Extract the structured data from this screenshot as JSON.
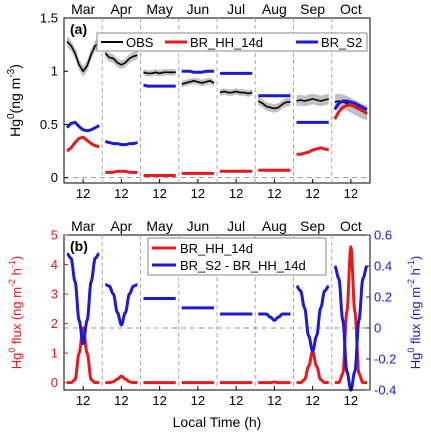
{
  "chart_data": [
    {
      "type": "line",
      "panel_label": "(a)",
      "ylabel_base": "Hg",
      "ylabel_sup": "0",
      "ylabel_unit": "(ng m",
      "ylabel_unit_sup": "-3",
      "ylabel_close": ")",
      "months": [
        "Mar",
        "Apr",
        "May",
        "Jun",
        "Jul",
        "Aug",
        "Sep",
        "Oct"
      ],
      "hour_tick_label": "12",
      "hours": [
        0,
        3,
        6,
        9,
        12,
        15,
        18,
        21,
        24
      ],
      "yticks": [
        "0",
        "0.5",
        "1",
        "1.5"
      ],
      "ylim": [
        -0.05,
        1.5
      ],
      "legend": [
        "OBS",
        "BR_HH_14d",
        "BR_S2"
      ],
      "colors": {
        "OBS": "#000000",
        "BR_HH_14d": "#e8191c",
        "BR_S2": "#1b1bd6",
        "band": "#b5b5b5",
        "zero": "#9a9a9a"
      },
      "series": [
        {
          "name": "OBS",
          "values": [
            [
              1.28,
              1.24,
              1.17,
              1.06,
              1.0,
              1.05,
              1.16,
              1.24,
              1.26
            ],
            [
              1.17,
              1.13,
              1.12,
              1.08,
              1.06,
              1.08,
              1.12,
              1.14,
              1.15
            ],
            [
              0.99,
              0.98,
              0.98,
              0.99,
              0.98,
              0.99,
              0.99,
              0.99,
              0.99
            ],
            [
              0.88,
              0.89,
              0.9,
              0.91,
              0.9,
              0.89,
              0.9,
              0.91,
              0.89
            ],
            [
              0.8,
              0.81,
              0.8,
              0.8,
              0.81,
              0.8,
              0.8,
              0.79,
              0.8
            ],
            [
              0.72,
              0.7,
              0.67,
              0.66,
              0.65,
              0.66,
              0.69,
              0.71,
              0.71
            ],
            [
              0.72,
              0.73,
              0.72,
              0.73,
              0.74,
              0.73,
              0.72,
              0.73,
              0.74
            ],
            [
              0.71,
              0.72,
              0.71,
              0.7,
              0.68,
              0.66,
              0.64,
              0.62,
              0.61
            ]
          ]
        },
        {
          "name": "BR_HH_14d",
          "values": [
            [
              0.25,
              0.28,
              0.33,
              0.37,
              0.38,
              0.35,
              0.32,
              0.3,
              0.29
            ],
            [
              0.05,
              0.05,
              0.05,
              0.06,
              0.06,
              0.06,
              0.05,
              0.05,
              0.05
            ],
            [
              0.02,
              0.02,
              0.02,
              0.02,
              0.02,
              0.02,
              0.02,
              0.02,
              0.02
            ],
            [
              0.04,
              0.04,
              0.04,
              0.04,
              0.04,
              0.04,
              0.04,
              0.04,
              0.04
            ],
            [
              0.06,
              0.06,
              0.06,
              0.06,
              0.06,
              0.06,
              0.06,
              0.06,
              0.06
            ],
            [
              0.07,
              0.07,
              0.07,
              0.07,
              0.07,
              0.07,
              0.07,
              0.07,
              0.07
            ],
            [
              0.22,
              0.22,
              0.23,
              0.24,
              0.26,
              0.27,
              0.28,
              0.27,
              0.26
            ],
            [
              0.55,
              0.62,
              0.66,
              0.68,
              0.68,
              0.67,
              0.65,
              0.63,
              0.6
            ]
          ]
        },
        {
          "name": "BR_S2",
          "values": [
            [
              0.47,
              0.51,
              0.52,
              0.48,
              0.45,
              0.44,
              0.45,
              0.47,
              0.49
            ],
            [
              0.34,
              0.33,
              0.32,
              0.32,
              0.31,
              0.31,
              0.32,
              0.32,
              0.33
            ],
            [
              0.87,
              0.86,
              0.86,
              0.86,
              0.86,
              0.86,
              0.86,
              0.86,
              0.86
            ],
            [
              1.0,
              1.0,
              1.0,
              0.99,
              0.99,
              0.99,
              1.0,
              1.0,
              1.0
            ],
            [
              0.98,
              0.98,
              0.98,
              0.98,
              0.98,
              0.98,
              0.98,
              0.98,
              0.98
            ],
            [
              0.77,
              0.77,
              0.77,
              0.77,
              0.77,
              0.77,
              0.77,
              0.77,
              0.77
            ],
            [
              0.52,
              0.52,
              0.52,
              0.52,
              0.52,
              0.52,
              0.52,
              0.52,
              0.52
            ],
            [
              0.64,
              0.7,
              0.72,
              0.72,
              0.71,
              0.7,
              0.68,
              0.66,
              0.64
            ]
          ]
        }
      ],
      "obs_band": [
        0.05,
        0.04,
        0.03,
        0.03,
        0.03,
        0.04,
        0.05,
        0.07
      ]
    },
    {
      "type": "line",
      "panel_label": "(b)",
      "ylabel_left": "Hg",
      "ylabel_left_sup": "0",
      "ylabel_left_unit": " flux (ng m",
      "ylabel_left_unit_sup": "-2",
      "ylabel_left_unit2": " h",
      "ylabel_left_unit2_sup": "-1",
      "ylabel_left_close": ")",
      "ylabel_right": "Hg",
      "ylabel_right_sup": "0",
      "ylabel_right_unit": " flux (ng m",
      "ylabel_right_unit_sup": "-2",
      "ylabel_right_unit2": " h",
      "ylabel_right_unit2_sup": "-1",
      "ylabel_right_close": ")",
      "xlabel": "Local Time (h)",
      "months": [
        "Mar",
        "Apr",
        "May",
        "Jun",
        "Jul",
        "Aug",
        "Sep",
        "Oct"
      ],
      "hour_tick_label": "12",
      "hours": [
        0,
        3,
        6,
        9,
        12,
        15,
        18,
        21,
        24
      ],
      "yticks_left": [
        "0",
        "1",
        "2",
        "3",
        "4",
        "5"
      ],
      "ylim_left": [
        -0.25,
        5.0
      ],
      "yticks_right": [
        "-0.4",
        "-0.2",
        "0",
        "0.2",
        "0.4",
        "0.6"
      ],
      "ylim_right": [
        -0.4,
        0.6
      ],
      "legend": [
        "BR_HH_14d",
        "BR_S2 - BR_HH_14d"
      ],
      "colors": {
        "BR_HH_14d": "#e8191c",
        "BR_S2 - BR_HH_14d": "#1b1bd6",
        "zero": "#9a9a9a"
      },
      "series": [
        {
          "name": "BR_HH_14d",
          "axis": "left",
          "values": [
            [
              0.0,
              0.0,
              0.1,
              1.0,
              1.85,
              1.0,
              0.1,
              0.0,
              0.0
            ],
            [
              0.0,
              0.0,
              0.03,
              0.12,
              0.22,
              0.12,
              0.03,
              0.0,
              0.0
            ],
            [
              0.0,
              0.0,
              0.0,
              0.0,
              0.0,
              0.0,
              0.0,
              0.0,
              0.0
            ],
            [
              0.0,
              0.0,
              0.0,
              0.0,
              0.0,
              0.0,
              0.0,
              0.0,
              0.0
            ],
            [
              0.0,
              0.0,
              0.0,
              0.0,
              0.0,
              0.0,
              0.0,
              0.0,
              0.0
            ],
            [
              0.0,
              0.0,
              0.0,
              0.0,
              0.02,
              0.0,
              0.0,
              0.0,
              0.0
            ],
            [
              0.0,
              0.0,
              0.1,
              0.55,
              1.05,
              0.55,
              0.1,
              0.0,
              0.0
            ],
            [
              0.0,
              0.0,
              0.3,
              2.4,
              4.6,
              2.4,
              0.3,
              0.0,
              0.0
            ]
          ]
        },
        {
          "name": "BR_S2 - BR_HH_14d",
          "axis": "right",
          "values": [
            [
              0.48,
              0.45,
              0.3,
              0.05,
              -0.1,
              0.05,
              0.3,
              0.45,
              0.48
            ],
            [
              0.28,
              0.27,
              0.22,
              0.1,
              0.02,
              0.1,
              0.22,
              0.27,
              0.28
            ],
            [
              0.19,
              0.19,
              0.19,
              0.19,
              0.19,
              0.19,
              0.19,
              0.19,
              0.19
            ],
            [
              0.13,
              0.13,
              0.13,
              0.13,
              0.13,
              0.13,
              0.13,
              0.13,
              0.13
            ],
            [
              0.09,
              0.09,
              0.09,
              0.09,
              0.09,
              0.09,
              0.09,
              0.09,
              0.09
            ],
            [
              0.09,
              0.09,
              0.09,
              0.07,
              0.05,
              0.07,
              0.09,
              0.09,
              0.09
            ],
            [
              0.27,
              0.24,
              0.13,
              -0.05,
              -0.15,
              -0.05,
              0.13,
              0.24,
              0.27
            ],
            [
              0.4,
              0.32,
              0.05,
              -0.28,
              -0.4,
              -0.28,
              0.05,
              0.32,
              0.4
            ]
          ]
        }
      ]
    }
  ]
}
